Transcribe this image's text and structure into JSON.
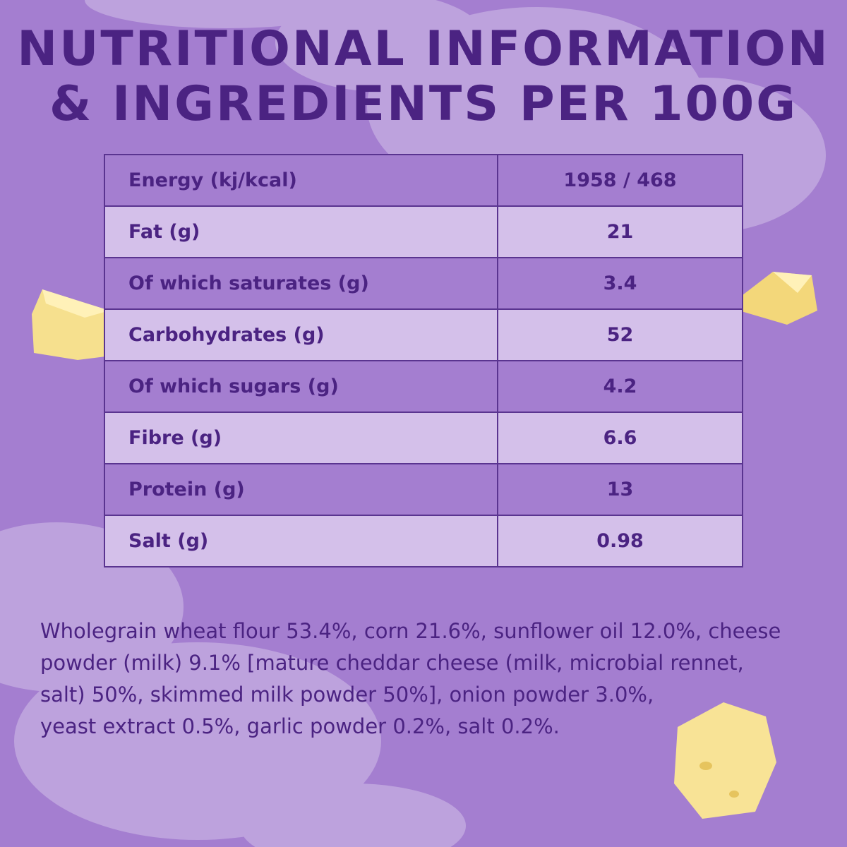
{
  "header": {
    "title_lines": [
      "NUTRITIONAL INFORMATION",
      "& INGREDIENTS PER 100G"
    ]
  },
  "table": {
    "rows": [
      [
        "Energy (kj/kcal)",
        "1958 / 468"
      ],
      [
        "Fat (g)",
        "21"
      ],
      [
        "Of which saturates (g)",
        "3.4"
      ],
      [
        "Carbohydrates (g)",
        "52"
      ],
      [
        "Of which sugars (g)",
        "4.2"
      ],
      [
        "Fibre (g)",
        "6.6"
      ],
      [
        "Protein (g)",
        "13"
      ],
      [
        "Salt (g)",
        "0.98"
      ]
    ]
  },
  "ingredients": {
    "lines": [
      "Wholegrain wheat flour 53.4%, corn 21.6%, sunflower oil 12.0%, cheese",
      "powder (milk) 9.1% [mature cheddar cheese (milk, microbial rennet,",
      "salt) 50%, skimmed milk powder 50%], onion powder 3.0%,",
      "yeast extract 0.5%, garlic powder 0.2%, salt 0.2%."
    ]
  }
}
